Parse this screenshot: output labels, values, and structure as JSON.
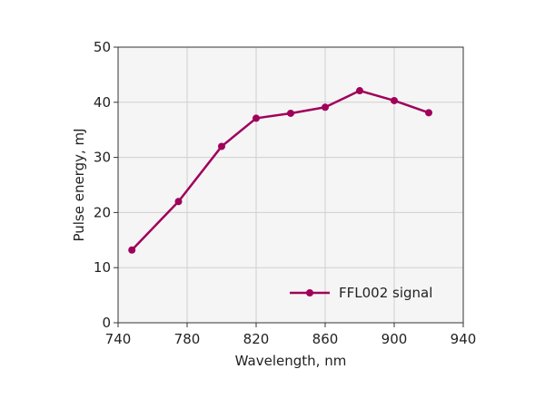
{
  "chart_data": {
    "type": "line",
    "title": "",
    "xlabel": "Wavelength, nm",
    "ylabel": "Pulse energy, mJ",
    "xlim": [
      740,
      940
    ],
    "ylim": [
      0,
      50
    ],
    "xticks": [
      "740",
      "780",
      "820",
      "860",
      "900",
      "940"
    ],
    "yticks": [
      "0",
      "10",
      "20",
      "30",
      "40",
      "50"
    ],
    "grid": true,
    "legend_position": "bottom-right",
    "series": [
      {
        "name": "FFL002 signal",
        "color": "#a0005a",
        "marker": "circle",
        "x": [
          748,
          775,
          800,
          820,
          840,
          860,
          880,
          900,
          920
        ],
        "y": [
          13.2,
          22,
          32,
          37.1,
          38,
          39.1,
          42.1,
          40.3,
          38.1
        ]
      }
    ]
  }
}
